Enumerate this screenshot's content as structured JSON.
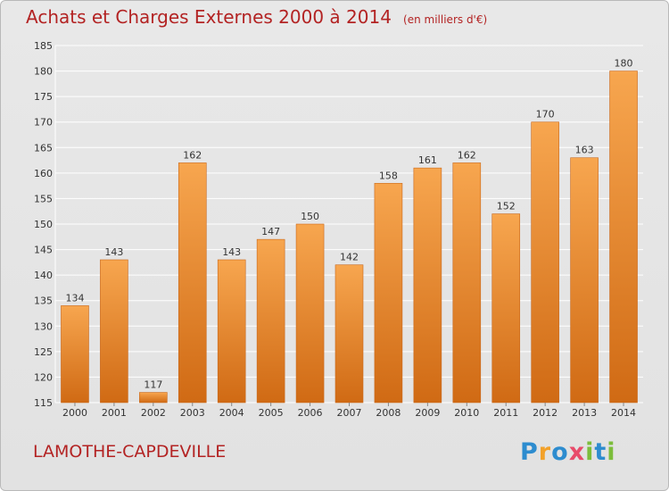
{
  "header": {
    "title": "Achats et Charges Externes 2000 à 2014",
    "unit": "(en milliers d'€)"
  },
  "footer": {
    "commune": "LAMOTHE-CAPDEVILLE",
    "logo_text": "Proxiti",
    "logo_letters": [
      "P",
      "r",
      "o",
      "x",
      "i",
      "t",
      "i"
    ]
  },
  "colors": {
    "title": "#b32323",
    "bar_light": "#f7a64f",
    "bar_dark": "#d06a14",
    "grid": "#ffffff",
    "background": "#e4e4e4"
  },
  "chart_data": {
    "type": "bar",
    "title": "Achats et Charges Externes 2000 à 2014",
    "subtitle": "(en milliers d'€)",
    "xlabel": "",
    "ylabel": "",
    "categories": [
      "2000",
      "2001",
      "2002",
      "2003",
      "2004",
      "2005",
      "2006",
      "2007",
      "2008",
      "2009",
      "2010",
      "2011",
      "2012",
      "2013",
      "2014"
    ],
    "values": [
      134,
      143,
      117,
      162,
      143,
      147,
      150,
      142,
      158,
      161,
      162,
      152,
      170,
      163,
      180
    ],
    "ylim": [
      115,
      185
    ],
    "yticks": [
      115,
      120,
      125,
      130,
      135,
      140,
      145,
      150,
      155,
      160,
      165,
      170,
      175,
      180,
      185
    ],
    "grid": true,
    "data_labels": true,
    "legend": "none"
  }
}
